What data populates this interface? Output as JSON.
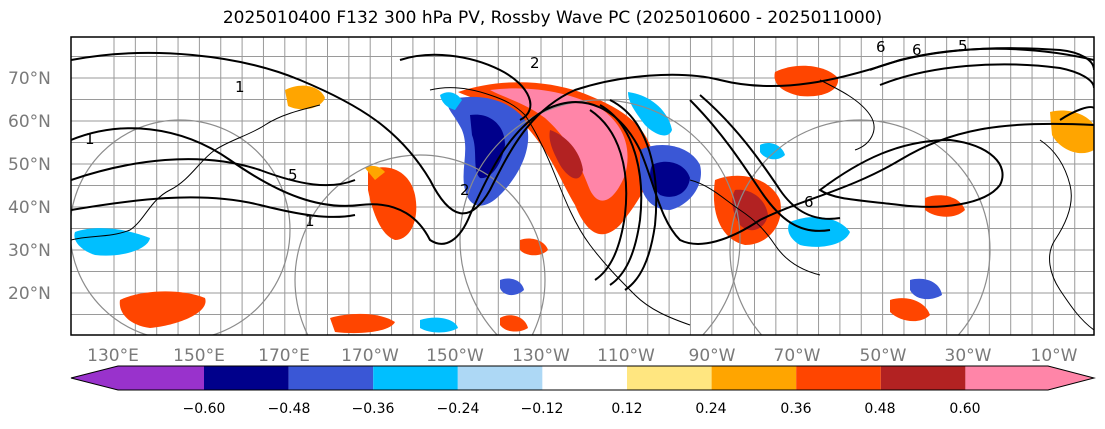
{
  "title": "2025010400 F132 300 hPa PV, Rossby Wave PC (2025010600 - 2025011000)",
  "lat_labels": [
    "70°N",
    "60°N",
    "50°N",
    "40°N",
    "30°N",
    "20°N"
  ],
  "lon_labels": [
    "130°E",
    "150°E",
    "170°E",
    "170°W",
    "150°W",
    "130°W",
    "110°W",
    "90°W",
    "70°W",
    "50°W",
    "30°W",
    "10°W"
  ],
  "contour_labels": [
    "2",
    "1",
    "1",
    "5",
    "1",
    "2",
    "6",
    "6",
    "5",
    "6"
  ],
  "colorbar": {
    "ticks": [
      "−0.60",
      "−0.48",
      "−0.36",
      "−0.24",
      "−0.12",
      "0.12",
      "0.24",
      "0.36",
      "0.48",
      "0.60"
    ],
    "colors": [
      "#9932cc",
      "#00008b",
      "#3a57d6",
      "#00bfff",
      "#add8f5",
      "#ffffff",
      "#ffe680",
      "#ffa500",
      "#ff4500",
      "#b22222",
      "#ff85a8"
    ]
  }
}
